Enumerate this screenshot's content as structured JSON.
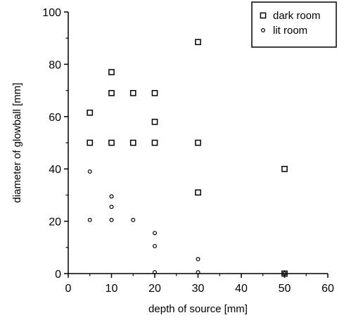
{
  "chart_data": {
    "type": "scatter",
    "title": "",
    "xlabel": "depth of source [mm]",
    "ylabel": "diameter of glowball [mm]",
    "xlim": [
      0,
      60
    ],
    "ylim": [
      0,
      100
    ],
    "xticks": [
      0,
      10,
      20,
      30,
      40,
      50,
      60
    ],
    "yticks": [
      0,
      20,
      40,
      60,
      80,
      100
    ],
    "grid": false,
    "legend_position": "top-right",
    "series": [
      {
        "name": "dark room",
        "marker": "square",
        "points": [
          [
            5,
            61.5
          ],
          [
            5,
            50
          ],
          [
            10,
            77
          ],
          [
            10,
            69
          ],
          [
            10,
            50
          ],
          [
            15,
            69
          ],
          [
            15,
            50
          ],
          [
            20,
            69
          ],
          [
            20,
            58
          ],
          [
            20,
            50
          ],
          [
            30,
            88.5
          ],
          [
            30,
            50
          ],
          [
            30,
            31
          ],
          [
            50,
            40
          ],
          [
            50,
            0
          ]
        ]
      },
      {
        "name": "lit room",
        "marker": "circle",
        "points": [
          [
            5,
            39
          ],
          [
            5,
            20.5
          ],
          [
            10,
            29.5
          ],
          [
            10,
            25.5
          ],
          [
            10,
            20.5
          ],
          [
            15,
            20.5
          ],
          [
            20,
            15.5
          ],
          [
            20,
            10.5
          ],
          [
            20,
            0.5
          ],
          [
            30,
            5.5
          ],
          [
            30,
            0.5
          ],
          [
            50,
            0
          ]
        ]
      }
    ]
  }
}
